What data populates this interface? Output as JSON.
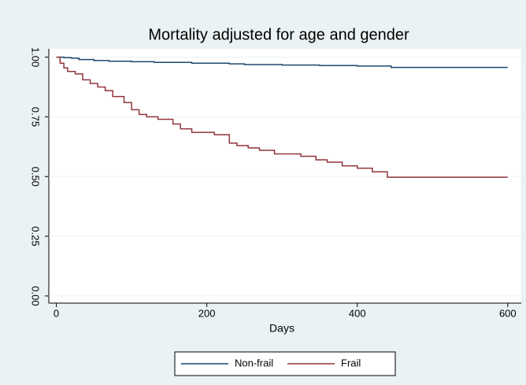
{
  "chart_data": {
    "type": "step",
    "title": "Mortality adjusted for age and gender",
    "x_label": "Days",
    "xlim": [
      -10,
      618
    ],
    "xticks": [
      0,
      200,
      400,
      600
    ],
    "ylim": [
      -0.03,
      1.035
    ],
    "yticks": [
      {
        "value": 0,
        "label": "0.00"
      },
      {
        "value": 0.25,
        "label": "0.25"
      },
      {
        "value": 0.5,
        "label": "0.50"
      },
      {
        "value": 0.75,
        "label": "0.75"
      },
      {
        "value": 1,
        "label": "1.00"
      }
    ],
    "grid": true,
    "series": [
      {
        "name": "Non-frail",
        "color": "#1a476f",
        "x": [
          0,
          10,
          20,
          30,
          50,
          70,
          100,
          130,
          180,
          230,
          250,
          300,
          350,
          400,
          445,
          600
        ],
        "values": [
          1,
          0.998,
          0.996,
          0.99,
          0.986,
          0.983,
          0.981,
          0.978,
          0.975,
          0.972,
          0.969,
          0.967,
          0.965,
          0.963,
          0.957,
          0.957
        ]
      },
      {
        "name": "Frail",
        "color": "#90353b",
        "x": [
          0,
          5,
          10,
          15,
          25,
          35,
          45,
          55,
          65,
          75,
          90,
          100,
          110,
          120,
          135,
          155,
          165,
          180,
          210,
          230,
          240,
          255,
          270,
          290,
          325,
          345,
          360,
          380,
          400,
          420,
          440,
          600
        ],
        "values": [
          1,
          0.975,
          0.955,
          0.94,
          0.93,
          0.905,
          0.89,
          0.875,
          0.86,
          0.835,
          0.81,
          0.78,
          0.76,
          0.75,
          0.74,
          0.72,
          0.7,
          0.685,
          0.675,
          0.64,
          0.63,
          0.62,
          0.61,
          0.595,
          0.585,
          0.57,
          0.56,
          0.545,
          0.535,
          0.52,
          0.497,
          0.497
        ]
      }
    ]
  }
}
